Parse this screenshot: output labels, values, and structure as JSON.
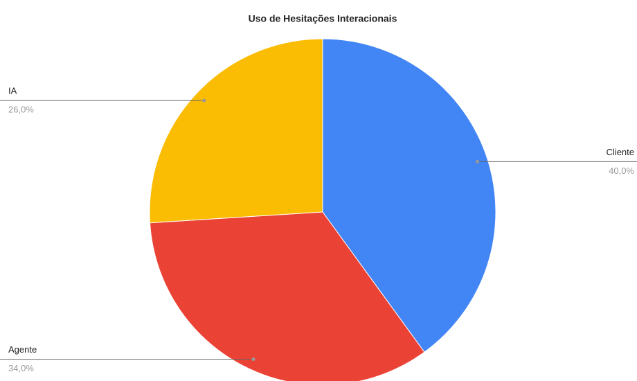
{
  "chart_data": {
    "type": "pie",
    "title": "Uso de Hesitações Interacionais",
    "categories": [
      "Cliente",
      "Agente",
      "IA"
    ],
    "values": [
      40,
      34,
      26
    ],
    "value_labels": [
      "40,0%",
      "34,0%",
      "26,0%"
    ],
    "colors": [
      "#4285f4",
      "#ea4335",
      "#fbbc04"
    ]
  }
}
